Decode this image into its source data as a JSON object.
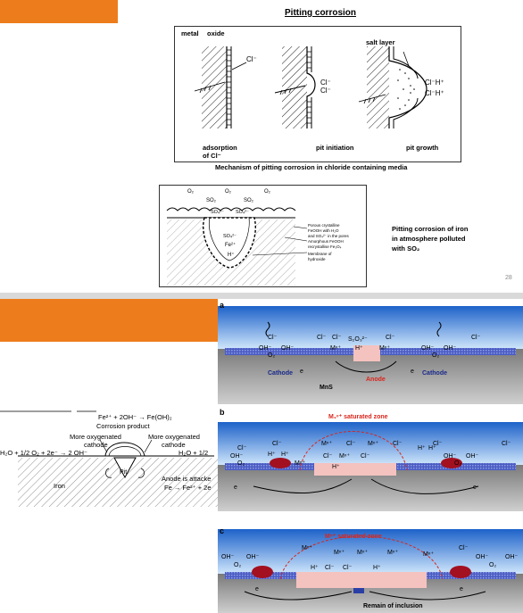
{
  "slide1": {
    "title": "Pitting corrosion",
    "fig1": {
      "labels": {
        "metal": "metal",
        "oxide": "oxide",
        "salt_layer": "salt layer",
        "cl1": "Cl⁻",
        "cl2": "Cl⁻",
        "cl3": "Cl⁻",
        "clh1": "Cl⁻H⁺",
        "clh2": "Cl⁻H⁺"
      },
      "steps": [
        "adsorption",
        "of Cl⁻",
        "pit initiation",
        "pit growth"
      ],
      "caption": "Mechanism of pitting corrosion in chloride containing media"
    },
    "fig2": {
      "labels": [
        "O₂",
        "SO₂",
        "O₂",
        "SO₂",
        "O₂",
        "SO₄²⁻",
        "SO₄²⁻",
        "SO₄²⁻",
        "Fe²⁺",
        "H⁺"
      ],
      "notes": [
        "Porous crystalline",
        "FeOOH with H₂O",
        "and SO₄²⁻ in the pores",
        "Amorphous FeOOH",
        "recrystallise Fe₃O₄",
        "Membrane of",
        "hydroxide"
      ]
    },
    "side_text": [
      "Pitting corrosion of iron",
      "in atmosphere polluted",
      "with SO₂"
    ],
    "page_number": "28"
  },
  "slide2": {
    "left_fig": {
      "lines": [
        "Fe²⁺ + 2OH⁻ → Fe(OH)₂",
        "Corrosion product",
        "More oxygenated",
        "cathode",
        "More oxygenated",
        "cathode",
        "H₂O + 1/2 O₂ + 2e⁻ → 2 OH⁻",
        "H₂O + 1/2",
        "Pit",
        "Iron",
        "Anode is attacke",
        "Fe → Fe²⁺ + 2e"
      ]
    },
    "panels": [
      {
        "label": "a",
        "ions": [
          "Cl⁻",
          "OH⁻",
          "O₂",
          "OH⁻",
          "Cl⁻",
          "Cl⁻",
          "S₂O₃²⁻",
          "Mⁿ⁺",
          "H⁺",
          "Mⁿ⁺",
          "Cl⁻",
          "OH⁻",
          "O₂",
          "OH⁻",
          "Cl⁻"
        ],
        "cathode_left": "Cathode",
        "cathode_right": "Cathode",
        "anode": "Anode",
        "inclusion": "MnS",
        "electron": "e"
      },
      {
        "label": "b",
        "zone": "M₁ⁿ⁺ saturated zone",
        "ions": [
          "Cl⁻",
          "OH⁻",
          "O₂",
          "Cl⁻",
          "H⁺",
          "H⁺",
          "Mⁿ⁺",
          "Mⁿ⁺",
          "Cl⁻",
          "Cl⁻",
          "Mⁿ⁺",
          "Cl⁻",
          "H⁺",
          "Mⁿ⁺",
          "Cl⁻",
          "H⁺",
          "H⁺",
          "Cl⁻",
          "OH⁻",
          "O₂",
          "OH⁻",
          "Cl⁻"
        ],
        "electron": "e"
      },
      {
        "label": "c",
        "zone": "Mⁿ⁺ saturated zone",
        "ions": [
          "OH⁻",
          "O₂",
          "OH⁻",
          "Mⁿ⁺",
          "Mⁿ⁺",
          "Mⁿ⁺",
          "Mⁿ⁺",
          "H⁺",
          "Cl⁻",
          "Cl⁻",
          "H⁺",
          "Mⁿ⁺",
          "Cl⁻",
          "OH⁻",
          "O₂",
          "OH⁻"
        ],
        "remain": "Remain of inclusion",
        "electron": "e"
      }
    ]
  },
  "colors": {
    "accent_orange": "#ed7d1c",
    "electrolyte_blue": "#5d9ee6",
    "metal_blue": "#3c4fb8",
    "pit_pink": "#f2b6b3",
    "metal_gray": "#8c8c8c",
    "red": "#d9261c"
  }
}
